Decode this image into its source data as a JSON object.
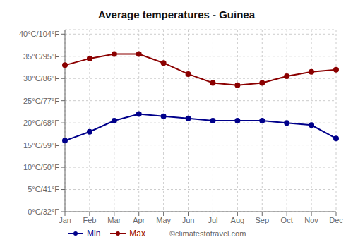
{
  "chart_data": {
    "type": "line",
    "title": "Average temperatures - Guinea",
    "categories": [
      "Jan",
      "Feb",
      "Mar",
      "Apr",
      "May",
      "Jun",
      "Jul",
      "Aug",
      "Sep",
      "Oct",
      "Nov",
      "Dec"
    ],
    "series": [
      {
        "name": "Min",
        "color": "#00008b",
        "values": [
          16,
          18,
          20.5,
          22,
          21.5,
          21,
          20.5,
          20.5,
          20.5,
          20,
          19.5,
          16.5
        ]
      },
      {
        "name": "Max",
        "color": "#8b0000",
        "values": [
          33,
          34.5,
          35.5,
          35.5,
          33.5,
          31,
          29,
          28.5,
          29,
          30.5,
          31.5,
          32
        ]
      }
    ],
    "ylim": [
      0,
      41
    ],
    "yticks": [
      {
        "value": 0,
        "label": "0°C/32°F"
      },
      {
        "value": 5,
        "label": "5°C/41°F"
      },
      {
        "value": 10,
        "label": "10°C/50°F"
      },
      {
        "value": 15,
        "label": "15°C/59°F"
      },
      {
        "value": 20,
        "label": "20°C/68°F"
      },
      {
        "value": 25,
        "label": "25°C/77°F"
      },
      {
        "value": 30,
        "label": "30°C/86°F"
      },
      {
        "value": 35,
        "label": "35°C/95°F"
      },
      {
        "value": 40,
        "label": "40°C/104°F"
      }
    ],
    "grid": true,
    "legend": "bottom",
    "marker": "circle",
    "annotations": [
      "©climatestotravel.com"
    ]
  }
}
